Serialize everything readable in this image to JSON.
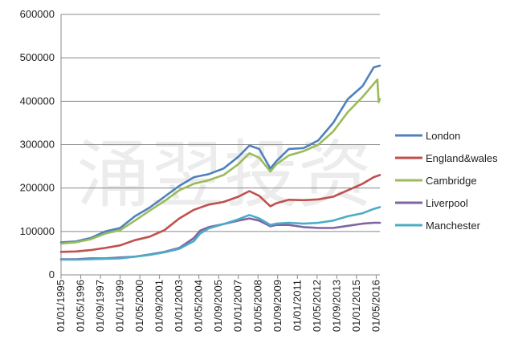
{
  "chart_data": {
    "type": "line",
    "title": "",
    "xlabel": "",
    "ylabel": "",
    "ylim": [
      0,
      600000
    ],
    "yticks": [
      "0",
      "100000",
      "200000",
      "300000",
      "400000",
      "500000",
      "600000"
    ],
    "x_tick_labels": [
      "01/01/1995",
      "01/05/1996",
      "01/09/1997",
      "01/01/1999",
      "01/05/2000",
      "01/09/2001",
      "01/01/2003",
      "01/05/2004",
      "01/09/2005",
      "01/01/2007",
      "01/05/2008",
      "01/09/2009",
      "01/01/2011",
      "01/05/2012",
      "01/09/2013",
      "01/01/2015",
      "01/05/2016"
    ],
    "x_range": [
      "1995-01",
      "2016-08"
    ],
    "grid": "horizontal",
    "legend_position": "right",
    "watermark": "涌翌投资",
    "series": [
      {
        "name": "London",
        "color": "#4F81BD",
        "points": [
          [
            "1995-01",
            75000
          ],
          [
            "1996-01",
            77000
          ],
          [
            "1997-01",
            85000
          ],
          [
            "1998-01",
            100000
          ],
          [
            "1999-01",
            108000
          ],
          [
            "2000-01",
            135000
          ],
          [
            "2001-01",
            155000
          ],
          [
            "2002-01",
            180000
          ],
          [
            "2003-01",
            205000
          ],
          [
            "2004-01",
            225000
          ],
          [
            "2005-01",
            232000
          ],
          [
            "2006-01",
            245000
          ],
          [
            "2007-01",
            272000
          ],
          [
            "2007-10",
            298000
          ],
          [
            "2008-06",
            290000
          ],
          [
            "2009-03",
            245000
          ],
          [
            "2009-08",
            262000
          ],
          [
            "2010-06",
            290000
          ],
          [
            "2011-06",
            292000
          ],
          [
            "2012-06",
            310000
          ],
          [
            "2013-06",
            350000
          ],
          [
            "2014-06",
            405000
          ],
          [
            "2015-06",
            435000
          ],
          [
            "2016-03",
            478000
          ],
          [
            "2016-08",
            482000
          ]
        ]
      },
      {
        "name": "England&wales",
        "color": "#C0504D",
        "points": [
          [
            "1995-01",
            53000
          ],
          [
            "1996-01",
            54000
          ],
          [
            "1997-01",
            57000
          ],
          [
            "1998-01",
            62000
          ],
          [
            "1999-01",
            68000
          ],
          [
            "2000-01",
            80000
          ],
          [
            "2001-01",
            88000
          ],
          [
            "2002-01",
            103000
          ],
          [
            "2003-01",
            130000
          ],
          [
            "2004-01",
            150000
          ],
          [
            "2005-01",
            162000
          ],
          [
            "2006-01",
            168000
          ],
          [
            "2007-01",
            180000
          ],
          [
            "2007-10",
            193000
          ],
          [
            "2008-06",
            182000
          ],
          [
            "2009-03",
            158000
          ],
          [
            "2009-08",
            165000
          ],
          [
            "2010-06",
            173000
          ],
          [
            "2011-06",
            172000
          ],
          [
            "2012-06",
            174000
          ],
          [
            "2013-06",
            180000
          ],
          [
            "2014-06",
            195000
          ],
          [
            "2015-06",
            210000
          ],
          [
            "2016-03",
            225000
          ],
          [
            "2016-08",
            230000
          ]
        ]
      },
      {
        "name": "Cambridge",
        "color": "#9BBB59",
        "points": [
          [
            "1995-01",
            72000
          ],
          [
            "1996-01",
            75000
          ],
          [
            "1997-01",
            82000
          ],
          [
            "1998-01",
            95000
          ],
          [
            "1999-01",
            103000
          ],
          [
            "2000-01",
            125000
          ],
          [
            "2001-01",
            148000
          ],
          [
            "2002-01",
            170000
          ],
          [
            "2003-01",
            195000
          ],
          [
            "2004-01",
            210000
          ],
          [
            "2005-01",
            218000
          ],
          [
            "2006-01",
            230000
          ],
          [
            "2007-01",
            255000
          ],
          [
            "2007-10",
            280000
          ],
          [
            "2008-06",
            270000
          ],
          [
            "2009-03",
            238000
          ],
          [
            "2009-08",
            255000
          ],
          [
            "2010-06",
            275000
          ],
          [
            "2011-06",
            285000
          ],
          [
            "2012-06",
            300000
          ],
          [
            "2013-06",
            330000
          ],
          [
            "2014-06",
            375000
          ],
          [
            "2015-06",
            410000
          ],
          [
            "2016-03",
            440000
          ],
          [
            "2016-06",
            450000
          ],
          [
            "2016-07",
            398000
          ],
          [
            "2016-08",
            405000
          ]
        ]
      },
      {
        "name": "Liverpool",
        "color": "#8064A2",
        "points": [
          [
            "1995-01",
            36000
          ],
          [
            "1996-01",
            36000
          ],
          [
            "1997-01",
            38000
          ],
          [
            "1998-01",
            38000
          ],
          [
            "1999-01",
            40000
          ],
          [
            "2000-01",
            42000
          ],
          [
            "2001-01",
            47000
          ],
          [
            "2002-01",
            53000
          ],
          [
            "2003-01",
            62000
          ],
          [
            "2004-01",
            85000
          ],
          [
            "2004-06",
            102000
          ],
          [
            "2005-01",
            110000
          ],
          [
            "2006-01",
            117000
          ],
          [
            "2007-01",
            125000
          ],
          [
            "2007-10",
            130000
          ],
          [
            "2008-06",
            125000
          ],
          [
            "2009-03",
            112000
          ],
          [
            "2009-08",
            115000
          ],
          [
            "2010-06",
            115000
          ],
          [
            "2011-06",
            110000
          ],
          [
            "2012-06",
            108000
          ],
          [
            "2013-06",
            108000
          ],
          [
            "2014-06",
            113000
          ],
          [
            "2015-06",
            118000
          ],
          [
            "2016-03",
            120000
          ],
          [
            "2016-08",
            120000
          ]
        ]
      },
      {
        "name": "Manchester",
        "color": "#4BACC6",
        "points": [
          [
            "1995-01",
            35000
          ],
          [
            "1996-01",
            35000
          ],
          [
            "1997-01",
            36000
          ],
          [
            "1998-01",
            37000
          ],
          [
            "1999-01",
            38000
          ],
          [
            "2000-01",
            42000
          ],
          [
            "2001-01",
            46000
          ],
          [
            "2002-01",
            52000
          ],
          [
            "2003-01",
            60000
          ],
          [
            "2004-01",
            78000
          ],
          [
            "2004-06",
            95000
          ],
          [
            "2005-01",
            107000
          ],
          [
            "2006-01",
            117000
          ],
          [
            "2007-01",
            128000
          ],
          [
            "2007-10",
            138000
          ],
          [
            "2008-06",
            130000
          ],
          [
            "2009-03",
            115000
          ],
          [
            "2009-08",
            118000
          ],
          [
            "2010-06",
            120000
          ],
          [
            "2011-06",
            118000
          ],
          [
            "2012-06",
            120000
          ],
          [
            "2013-06",
            125000
          ],
          [
            "2014-06",
            135000
          ],
          [
            "2015-06",
            142000
          ],
          [
            "2016-03",
            152000
          ],
          [
            "2016-08",
            156000
          ]
        ]
      }
    ]
  }
}
